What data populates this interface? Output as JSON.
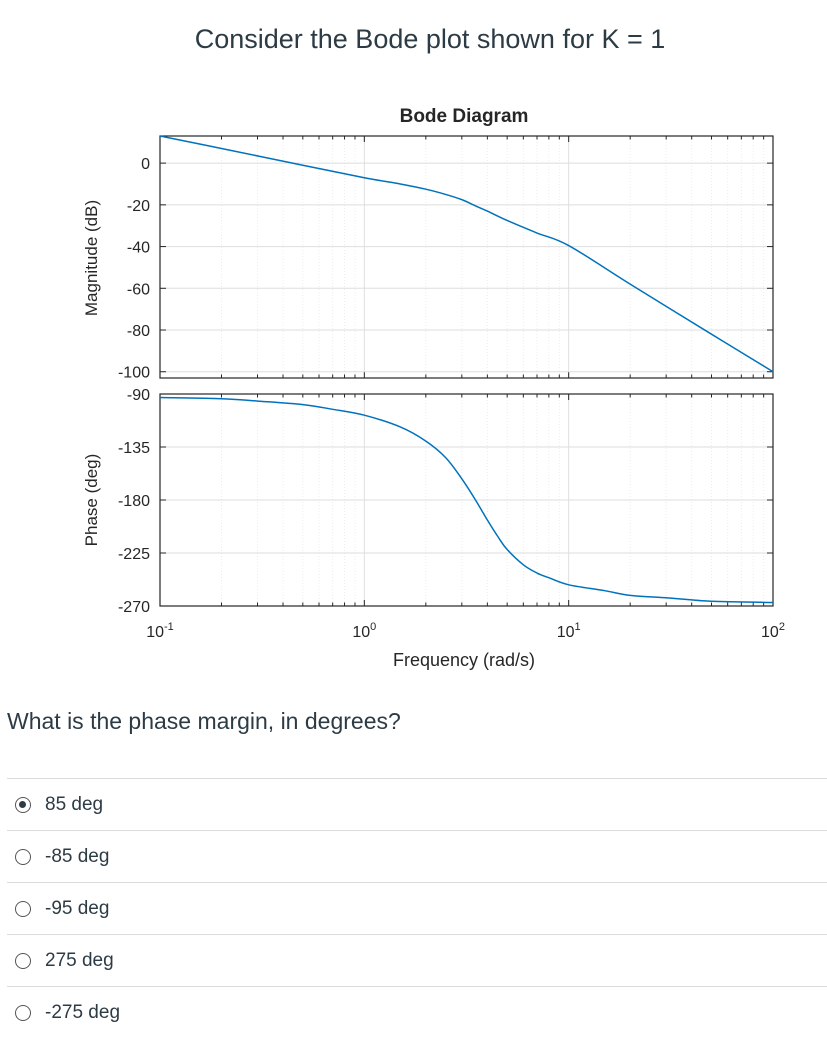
{
  "question_header": "Consider the Bode plot shown for K = 1",
  "question_text": "What is the phase margin, in degrees?",
  "answers": [
    {
      "label": "85 deg",
      "selected": true
    },
    {
      "label": "-85 deg",
      "selected": false
    },
    {
      "label": "-95 deg",
      "selected": false
    },
    {
      "label": "275 deg",
      "selected": false
    },
    {
      "label": "-275 deg",
      "selected": false
    }
  ],
  "chart_data": {
    "type": "line",
    "title": "Bode Diagram",
    "xlabel": "Frequency (rad/s)",
    "x_scale": "log",
    "xlim": [
      0.1,
      100
    ],
    "x_ticks": [
      {
        "base": "10",
        "exp": "-1"
      },
      {
        "base": "10",
        "exp": "0"
      },
      {
        "base": "10",
        "exp": "1"
      },
      {
        "base": "10",
        "exp": "2"
      }
    ],
    "grid": true,
    "line_color": "#0072bd",
    "magnitude": {
      "ylabel": "Magnitude (dB)",
      "ylim": [
        -103,
        13
      ],
      "yticks": [
        "0",
        "-20",
        "-40",
        "-60",
        "-80",
        "-100"
      ],
      "ytick_values": [
        0,
        -20,
        -40,
        -60,
        -80,
        -100
      ],
      "series": [
        {
          "x": [
            0.1,
            0.2,
            0.5,
            1,
            1.5,
            2,
            2.5,
            3,
            3.5,
            4,
            5,
            7,
            10,
            20,
            50,
            100
          ],
          "y": [
            13,
            7,
            -1,
            -7,
            -10,
            -12.5,
            -15,
            -17.5,
            -20.5,
            -23,
            -27.5,
            -33.5,
            -39.5,
            -58,
            -82,
            -100
          ]
        }
      ]
    },
    "phase": {
      "ylabel": "Phase (deg)",
      "ylim": [
        -270,
        -90
      ],
      "yticks": [
        "-90",
        "-135",
        "-180",
        "-225",
        "-270"
      ],
      "ytick_values": [
        -90,
        -135,
        -180,
        -225,
        -270
      ],
      "series": [
        {
          "x": [
            0.1,
            0.2,
            0.3,
            0.5,
            0.7,
            1,
            1.5,
            2,
            2.5,
            3,
            3.5,
            4,
            4.5,
            5,
            6,
            7,
            8,
            10,
            15,
            20,
            30,
            50,
            100
          ],
          "y": [
            -93,
            -94,
            -96,
            -99,
            -103,
            -108,
            -118,
            -130,
            -144,
            -162,
            -180,
            -197,
            -211,
            -222,
            -235,
            -242,
            -246,
            -252,
            -257,
            -261,
            -263,
            -266,
            -267
          ]
        }
      ]
    }
  }
}
